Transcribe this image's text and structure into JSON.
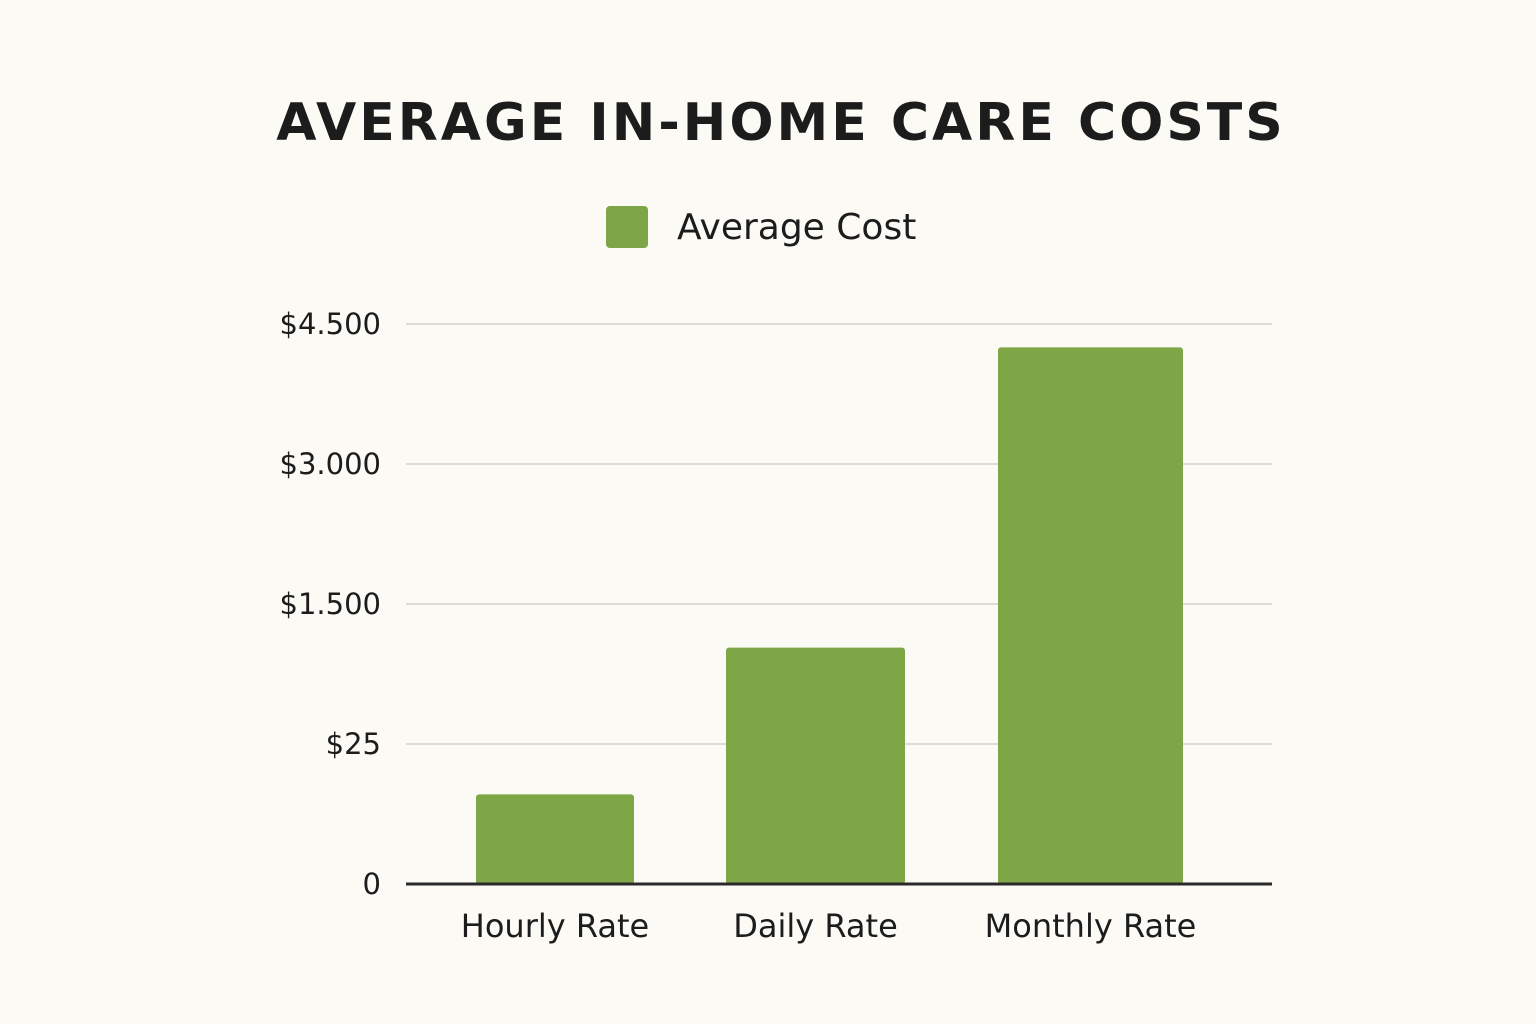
{
  "chart_data": {
    "type": "bar",
    "title": "AVERAGE IN-HOME CARE COSTS",
    "categories": [
      "Hourly Rate",
      "Daily Rate",
      "Monthly Rate"
    ],
    "series": [
      {
        "name": "Average Cost",
        "color": "#7ea646",
        "values": [
          16,
          1040,
          4250
        ]
      }
    ],
    "ylim": [
      0,
      4500
    ],
    "yticks": [
      0,
      {
        "value": 25,
        "label": "$25"
      },
      {
        "value": 1500,
        "label": "$1.500"
      },
      {
        "value": 3000,
        "label": "$3.000"
      },
      {
        "value": 4500,
        "label": "$4.500"
      }
    ],
    "grid": true,
    "legend": "top"
  }
}
